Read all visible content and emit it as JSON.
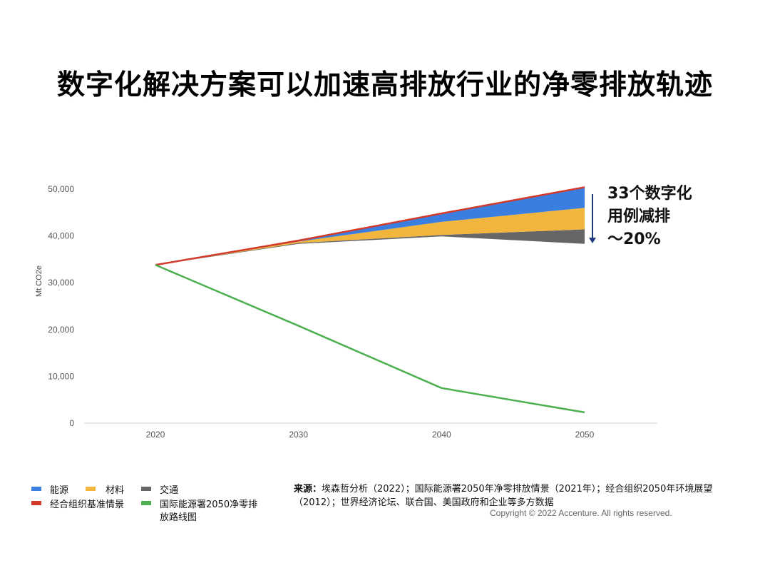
{
  "title": "数字化解决方案可以加速高排放行业的净零排放轨迹",
  "annotation": {
    "line1": "33个数字化",
    "line2": "用例减排",
    "line3": "～20%"
  },
  "chart_data": {
    "type": "area",
    "x": [
      2020,
      2030,
      2040,
      2050
    ],
    "ylabel": "Mt CO2e",
    "ylim": [
      0,
      50000
    ],
    "yticks": [
      "0",
      "10,000",
      "20,000",
      "30,000",
      "40,000",
      "50,000"
    ],
    "xticks": [
      "2020",
      "2030",
      "2040",
      "2050"
    ],
    "gridlines": false,
    "baseline": {
      "name": "经合组织基准情景",
      "color": "#d23a2c",
      "values": [
        33800,
        39000,
        44800,
        50400
      ]
    },
    "stacked_reductions": [
      {
        "name": "交通",
        "color": "#666666",
        "bottom": [
          33800,
          38300,
          39900,
          38300
        ],
        "top": [
          33800,
          38500,
          40200,
          41400
        ]
      },
      {
        "name": "材料",
        "color": "#f2b63e",
        "bottom": [
          33800,
          38500,
          40200,
          41400
        ],
        "top": [
          33800,
          38800,
          43000,
          46000
        ]
      },
      {
        "name": "能源",
        "color": "#3a7ee0",
        "bottom": [
          33800,
          38800,
          43000,
          46000
        ],
        "top": [
          33800,
          39000,
          44800,
          50400
        ]
      }
    ],
    "iea_nze": {
      "name": "国际能源署2050净零排放路线图",
      "color": "#4caf50",
      "values": [
        33800,
        20800,
        7500,
        2300
      ]
    }
  },
  "legend": {
    "energy": "能源",
    "materials": "材料",
    "transport": "交通",
    "oecd": "经合组织基准情景",
    "iea": "国际能源署2050净零排",
    "iea_cont": "放路线图"
  },
  "source": {
    "label": "来源：",
    "text": "埃森哲分析（2022）；国际能源署2050年净零排放情景（2021年）；经合组织2050年环境展望（2012）；世界经济论坛、联合国、美国政府和企业等多方数据"
  },
  "copyright": "Copyright © 2022 Accenture. All rights reserved."
}
